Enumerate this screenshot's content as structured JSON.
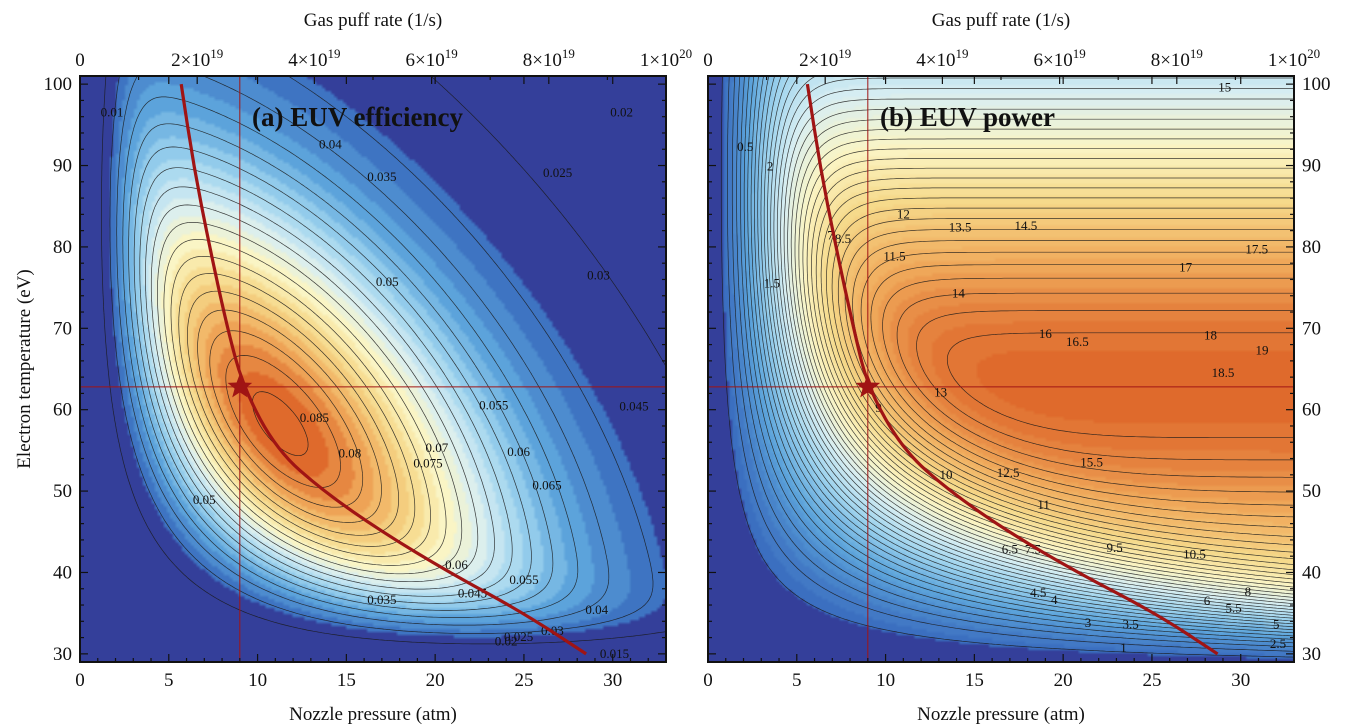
{
  "colors": {
    "frame": "#111111",
    "ridge_curve": "#a01414",
    "low_region": "#343f9a",
    "palette": [
      "#3b6fc0",
      "#5ea6dc",
      "#9ed3ee",
      "#d8eef2",
      "#fbf5c4",
      "#f6d98a",
      "#f0ac5d",
      "#df6a2c"
    ]
  },
  "chart_data": [
    {
      "type": "contour",
      "title": "(a)  EUV efficiency",
      "xlabel": "Nozzle pressure (atm)",
      "ylabel": "Electron temperature (eV)",
      "top_xlabel": "Gas puff rate (1/s)",
      "xlim": [
        0,
        33
      ],
      "ylim": [
        29,
        101
      ],
      "top_xlim": [
        0,
        1e+20
      ],
      "x_ticks": [
        "0",
        "5",
        "10",
        "15",
        "20",
        "25",
        "30"
      ],
      "y_ticks": [
        "30",
        "40",
        "50",
        "60",
        "70",
        "80",
        "90",
        "100"
      ],
      "top_ticks": [
        {
          "value": 0,
          "base": "0",
          "exp": ""
        },
        {
          "value": 2e+19,
          "base": "2×10",
          "exp": "19"
        },
        {
          "value": 4e+19,
          "base": "4×10",
          "exp": "19"
        },
        {
          "value": 6e+19,
          "base": "6×10",
          "exp": "19"
        },
        {
          "value": 8e+19,
          "base": "8×10",
          "exp": "19"
        },
        {
          "value": 1e+20,
          "base": "1×10",
          "exp": "20"
        }
      ],
      "peak": {
        "x": 10.5,
        "y": 57,
        "value": 0.09
      },
      "contour_labels": [
        {
          "text": "0.01",
          "x": 1.8,
          "y": 96.5
        },
        {
          "text": "0.04",
          "x": 14.1,
          "y": 92.6
        },
        {
          "text": "0.035",
          "x": 17.0,
          "y": 88.6
        },
        {
          "text": "0.025",
          "x": 26.9,
          "y": 89.1
        },
        {
          "text": "0.02",
          "x": 30.5,
          "y": 96.5
        },
        {
          "text": "0.03",
          "x": 29.2,
          "y": 76.5
        },
        {
          "text": "0.05",
          "x": 17.3,
          "y": 75.7
        },
        {
          "text": "0.055",
          "x": 23.3,
          "y": 60.5
        },
        {
          "text": "0.045",
          "x": 31.2,
          "y": 60.4
        },
        {
          "text": "0.085",
          "x": 13.2,
          "y": 59.0
        },
        {
          "text": "0.08",
          "x": 15.2,
          "y": 54.6
        },
        {
          "text": "0.07",
          "x": 20.1,
          "y": 55.3
        },
        {
          "text": "0.075",
          "x": 19.6,
          "y": 53.4
        },
        {
          "text": "0.06",
          "x": 24.7,
          "y": 54.8
        },
        {
          "text": "0.065",
          "x": 26.3,
          "y": 50.7
        },
        {
          "text": "0.05",
          "x": 7.0,
          "y": 48.9
        },
        {
          "text": "0.06",
          "x": 21.2,
          "y": 40.9
        },
        {
          "text": "0.055",
          "x": 25.0,
          "y": 39.1
        },
        {
          "text": "0.045",
          "x": 22.1,
          "y": 37.4
        },
        {
          "text": "0.035",
          "x": 17.0,
          "y": 36.6
        },
        {
          "text": "0.04",
          "x": 29.1,
          "y": 35.4
        },
        {
          "text": "0.03",
          "x": 26.6,
          "y": 32.8
        },
        {
          "text": "0.025",
          "x": 24.7,
          "y": 32.1
        },
        {
          "text": "0.02",
          "x": 24.0,
          "y": 31.5
        },
        {
          "text": "0.015",
          "x": 30.1,
          "y": 30.0
        }
      ],
      "ridge_curve": [
        [
          5.7,
          100
        ],
        [
          6.4,
          90
        ],
        [
          7.3,
          80
        ],
        [
          8.3,
          70
        ],
        [
          9.2,
          62.7
        ],
        [
          11.1,
          55
        ],
        [
          13.7,
          50
        ],
        [
          17.0,
          45
        ],
        [
          20.8,
          40
        ],
        [
          25.0,
          35
        ],
        [
          28.5,
          30
        ]
      ],
      "optimum": {
        "x": 9.0,
        "y": 62.8
      }
    },
    {
      "type": "contour",
      "title": "(b)  EUV power",
      "xlabel": "Nozzle pressure (atm)",
      "ylabel": "",
      "top_xlabel": "Gas puff rate (1/s)",
      "xlim": [
        0,
        33
      ],
      "ylim": [
        29,
        101
      ],
      "top_xlim": [
        0,
        1e+20
      ],
      "x_ticks": [
        "0",
        "5",
        "10",
        "15",
        "20",
        "25",
        "30"
      ],
      "y_ticks": [
        "30",
        "40",
        "50",
        "60",
        "70",
        "80",
        "90",
        "100"
      ],
      "top_ticks": [
        {
          "value": 0,
          "base": "0",
          "exp": ""
        },
        {
          "value": 2e+19,
          "base": "2×10",
          "exp": "19"
        },
        {
          "value": 4e+19,
          "base": "4×10",
          "exp": "19"
        },
        {
          "value": 6e+19,
          "base": "6×10",
          "exp": "19"
        },
        {
          "value": 8e+19,
          "base": "8×10",
          "exp": "19"
        },
        {
          "value": 1e+20,
          "base": "1×10",
          "exp": "20"
        }
      ],
      "peak": {
        "x": 33,
        "y": 63,
        "value": 19.5
      },
      "contour_labels": [
        {
          "text": "15",
          "x": 29.1,
          "y": 99.6
        },
        {
          "text": "0.5",
          "x": 2.1,
          "y": 92.3
        },
        {
          "text": "2",
          "x": 3.5,
          "y": 89.9
        },
        {
          "text": "12",
          "x": 11.0,
          "y": 84.0
        },
        {
          "text": "13.5",
          "x": 14.2,
          "y": 82.4
        },
        {
          "text": "14.5",
          "x": 17.9,
          "y": 82.6
        },
        {
          "text": "7",
          "x": 6.9,
          "y": 81.4
        },
        {
          "text": "8.5",
          "x": 7.6,
          "y": 81.0
        },
        {
          "text": "11.5",
          "x": 10.5,
          "y": 78.8
        },
        {
          "text": "17",
          "x": 26.9,
          "y": 77.5
        },
        {
          "text": "17.5",
          "x": 30.9,
          "y": 79.7
        },
        {
          "text": "1.5",
          "x": 3.6,
          "y": 75.5
        },
        {
          "text": "14",
          "x": 14.1,
          "y": 74.3
        },
        {
          "text": "16",
          "x": 19.0,
          "y": 69.3
        },
        {
          "text": "16.5",
          "x": 20.8,
          "y": 68.3
        },
        {
          "text": "18",
          "x": 28.3,
          "y": 69.1
        },
        {
          "text": "19",
          "x": 31.2,
          "y": 67.3
        },
        {
          "text": "18.5",
          "x": 29.0,
          "y": 64.5
        },
        {
          "text": "13",
          "x": 13.1,
          "y": 62.1
        },
        {
          "text": "9",
          "x": 9.6,
          "y": 60.2
        },
        {
          "text": "15.5",
          "x": 21.6,
          "y": 53.5
        },
        {
          "text": "10",
          "x": 13.4,
          "y": 52.0
        },
        {
          "text": "12.5",
          "x": 16.9,
          "y": 52.2
        },
        {
          "text": "11",
          "x": 18.9,
          "y": 48.3
        },
        {
          "text": "9.5",
          "x": 22.9,
          "y": 43.0
        },
        {
          "text": "10.5",
          "x": 27.4,
          "y": 42.2
        },
        {
          "text": "6.5",
          "x": 17.0,
          "y": 42.8
        },
        {
          "text": "7.5",
          "x": 18.3,
          "y": 42.8
        },
        {
          "text": "8",
          "x": 30.4,
          "y": 37.6
        },
        {
          "text": "6",
          "x": 28.1,
          "y": 36.5
        },
        {
          "text": "5.5",
          "x": 29.6,
          "y": 35.6
        },
        {
          "text": "4.5",
          "x": 18.6,
          "y": 37.5
        },
        {
          "text": "4",
          "x": 19.5,
          "y": 36.6
        },
        {
          "text": "3.5",
          "x": 23.8,
          "y": 33.6
        },
        {
          "text": "3",
          "x": 21.4,
          "y": 33.8
        },
        {
          "text": "5",
          "x": 32.0,
          "y": 33.6
        },
        {
          "text": "2.5",
          "x": 32.1,
          "y": 31.2
        },
        {
          "text": "1",
          "x": 23.4,
          "y": 30.7
        }
      ],
      "ridge_curve": [
        [
          5.6,
          100
        ],
        [
          6.3,
          90
        ],
        [
          7.2,
          80
        ],
        [
          8.2,
          70
        ],
        [
          9.0,
          62.7
        ],
        [
          11.0,
          55
        ],
        [
          13.6,
          50
        ],
        [
          16.9,
          45
        ],
        [
          20.8,
          40
        ],
        [
          25.2,
          35
        ],
        [
          28.7,
          30
        ]
      ],
      "optimum": {
        "x": 9.0,
        "y": 62.8
      }
    }
  ]
}
